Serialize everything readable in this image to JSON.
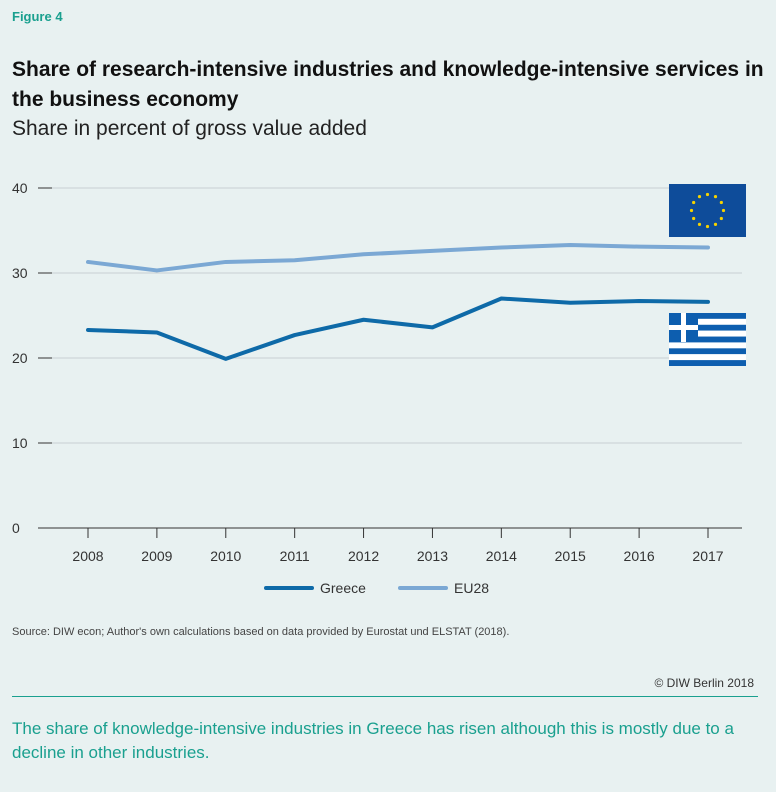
{
  "figure_label": "Figure 4",
  "title": "Share of research-intensive industries and knowledge-intensive services in the business economy",
  "subtitle": "Share in percent of gross value added",
  "source": "Source: DIW econ; Author's own calculations based on data provided by Eurostat und ELSTAT (2018).",
  "copyright": "© DIW Berlin 2018",
  "caption": "The share of knowledge-intensive industries in Greece has risen although this is mostly due to a decline in other industries.",
  "colors": {
    "greece": "#0e6aa8",
    "eu28": "#7ba8d4",
    "accent": "#1aa08f",
    "eu_flag": "#0e4c9a",
    "eu_stars": "#f5d200",
    "greek_flag": "#0d5eaf"
  },
  "icons": [
    "eu-flag-icon",
    "greek-flag-icon"
  ],
  "chart_data": {
    "type": "line",
    "x": [
      2008,
      2009,
      2010,
      2011,
      2012,
      2013,
      2014,
      2015,
      2016,
      2017
    ],
    "series": [
      {
        "name": "Greece",
        "values": [
          23.3,
          23.0,
          19.9,
          22.7,
          24.5,
          23.6,
          27.0,
          26.5,
          26.7,
          26.6
        ]
      },
      {
        "name": "EU28",
        "values": [
          31.3,
          30.3,
          31.3,
          31.5,
          32.2,
          32.6,
          33.0,
          33.3,
          33.1,
          33.0
        ]
      }
    ],
    "yticks": [
      0,
      10,
      20,
      30,
      40
    ],
    "ylim": [
      0,
      40
    ],
    "grid": true,
    "legend": "bottom"
  }
}
